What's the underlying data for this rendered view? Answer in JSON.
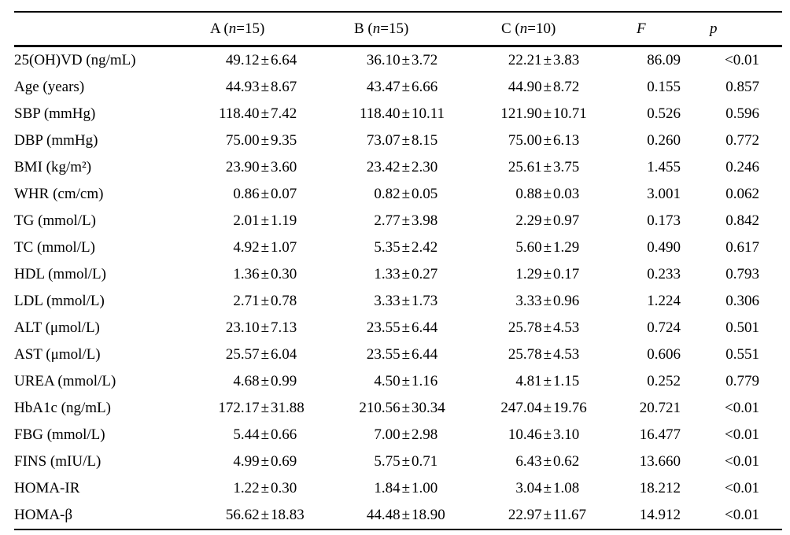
{
  "table": {
    "pm": "±",
    "header": {
      "blank": "",
      "groups": [
        {
          "prefix": "A (",
          "n": "n",
          "suffix": "=15)"
        },
        {
          "prefix": "B (",
          "n": "n",
          "suffix": "=15)"
        },
        {
          "prefix": "C (",
          "n": "n",
          "suffix": "=10)"
        }
      ],
      "f": "F",
      "p": "p"
    },
    "rows": [
      {
        "label": "25(OH)VD (ng/mL)",
        "a": {
          "mean": "49.12",
          "sd": "6.64"
        },
        "b": {
          "mean": "36.10",
          "sd": "3.72"
        },
        "c": {
          "mean": "22.21",
          "sd": "3.83"
        },
        "f": "86.09",
        "p": "<0.01"
      },
      {
        "label": "Age (years)",
        "a": {
          "mean": "44.93",
          "sd": "8.67"
        },
        "b": {
          "mean": "43.47",
          "sd": "6.66"
        },
        "c": {
          "mean": "44.90",
          "sd": "8.72"
        },
        "f": "0.155",
        "p": "0.857"
      },
      {
        "label": "SBP (mmHg)",
        "a": {
          "mean": "118.40",
          "sd": "7.42"
        },
        "b": {
          "mean": "118.40",
          "sd": "10.11"
        },
        "c": {
          "mean": "121.90",
          "sd": "10.71"
        },
        "f": "0.526",
        "p": "0.596"
      },
      {
        "label": "DBP (mmHg)",
        "a": {
          "mean": "75.00",
          "sd": "9.35"
        },
        "b": {
          "mean": "73.07",
          "sd": "8.15"
        },
        "c": {
          "mean": "75.00",
          "sd": "6.13"
        },
        "f": "0.260",
        "p": "0.772"
      },
      {
        "label": "BMI (kg/m²)",
        "a": {
          "mean": "23.90",
          "sd": "3.60"
        },
        "b": {
          "mean": "23.42",
          "sd": "2.30"
        },
        "c": {
          "mean": "25.61",
          "sd": "3.75"
        },
        "f": "1.455",
        "p": "0.246"
      },
      {
        "label": "WHR (cm/cm)",
        "a": {
          "mean": "0.86",
          "sd": "0.07"
        },
        "b": {
          "mean": "0.82",
          "sd": "0.05"
        },
        "c": {
          "mean": "0.88",
          "sd": "0.03"
        },
        "f": "3.001",
        "p": "0.062"
      },
      {
        "label": "TG (mmol/L)",
        "a": {
          "mean": "2.01",
          "sd": "1.19"
        },
        "b": {
          "mean": "2.77",
          "sd": "3.98"
        },
        "c": {
          "mean": "2.29",
          "sd": "0.97"
        },
        "f": "0.173",
        "p": "0.842"
      },
      {
        "label": "TC (mmol/L)",
        "a": {
          "mean": "4.92",
          "sd": "1.07"
        },
        "b": {
          "mean": "5.35",
          "sd": "2.42"
        },
        "c": {
          "mean": "5.60",
          "sd": "1.29"
        },
        "f": "0.490",
        "p": "0.617"
      },
      {
        "label": "HDL (mmol/L)",
        "a": {
          "mean": "1.36",
          "sd": "0.30"
        },
        "b": {
          "mean": "1.33",
          "sd": "0.27"
        },
        "c": {
          "mean": "1.29",
          "sd": "0.17"
        },
        "f": "0.233",
        "p": "0.793"
      },
      {
        "label": "LDL (mmol/L)",
        "a": {
          "mean": "2.71",
          "sd": "0.78"
        },
        "b": {
          "mean": "3.33",
          "sd": "1.73"
        },
        "c": {
          "mean": "3.33",
          "sd": "0.96"
        },
        "f": "1.224",
        "p": "0.306"
      },
      {
        "label": "ALT (μmol/L)",
        "a": {
          "mean": "23.10",
          "sd": "7.13"
        },
        "b": {
          "mean": "23.55",
          "sd": "6.44"
        },
        "c": {
          "mean": "25.78",
          "sd": "4.53"
        },
        "f": "0.724",
        "p": "0.501"
      },
      {
        "label": "AST (μmol/L)",
        "a": {
          "mean": "25.57",
          "sd": "6.04"
        },
        "b": {
          "mean": "23.55",
          "sd": "6.44"
        },
        "c": {
          "mean": "25.78",
          "sd": "4.53"
        },
        "f": "0.606",
        "p": "0.551"
      },
      {
        "label": "UREA (mmol/L)",
        "a": {
          "mean": "4.68",
          "sd": "0.99"
        },
        "b": {
          "mean": "4.50",
          "sd": "1.16"
        },
        "c": {
          "mean": "4.81",
          "sd": "1.15"
        },
        "f": "0.252",
        "p": "0.779"
      },
      {
        "label": "HbA1c (ng/mL)",
        "a": {
          "mean": "172.17",
          "sd": "31.88"
        },
        "b": {
          "mean": "210.56",
          "sd": "30.34"
        },
        "c": {
          "mean": "247.04",
          "sd": "19.76"
        },
        "f": "20.721",
        "p": "<0.01"
      },
      {
        "label": "FBG (mmol/L)",
        "a": {
          "mean": "5.44",
          "sd": "0.66"
        },
        "b": {
          "mean": "7.00",
          "sd": "2.98"
        },
        "c": {
          "mean": "10.46",
          "sd": "3.10"
        },
        "f": "16.477",
        "p": "<0.01"
      },
      {
        "label": "FINS (mIU/L)",
        "a": {
          "mean": "4.99",
          "sd": "0.69"
        },
        "b": {
          "mean": "5.75",
          "sd": "0.71"
        },
        "c": {
          "mean": "6.43",
          "sd": "0.62"
        },
        "f": "13.660",
        "p": "<0.01"
      },
      {
        "label": "HOMA-IR",
        "a": {
          "mean": "1.22",
          "sd": "0.30"
        },
        "b": {
          "mean": "1.84",
          "sd": "1.00"
        },
        "c": {
          "mean": "3.04",
          "sd": "1.08"
        },
        "f": "18.212",
        "p": "<0.01"
      },
      {
        "label": "HOMA-β",
        "a": {
          "mean": "56.62",
          "sd": "18.83"
        },
        "b": {
          "mean": "44.48",
          "sd": "18.90"
        },
        "c": {
          "mean": "22.97",
          "sd": "11.67"
        },
        "f": "14.912",
        "p": "<0.01"
      }
    ]
  },
  "style": {
    "text_color": "#000000",
    "background": "#ffffff",
    "rule_color": "#000000"
  }
}
